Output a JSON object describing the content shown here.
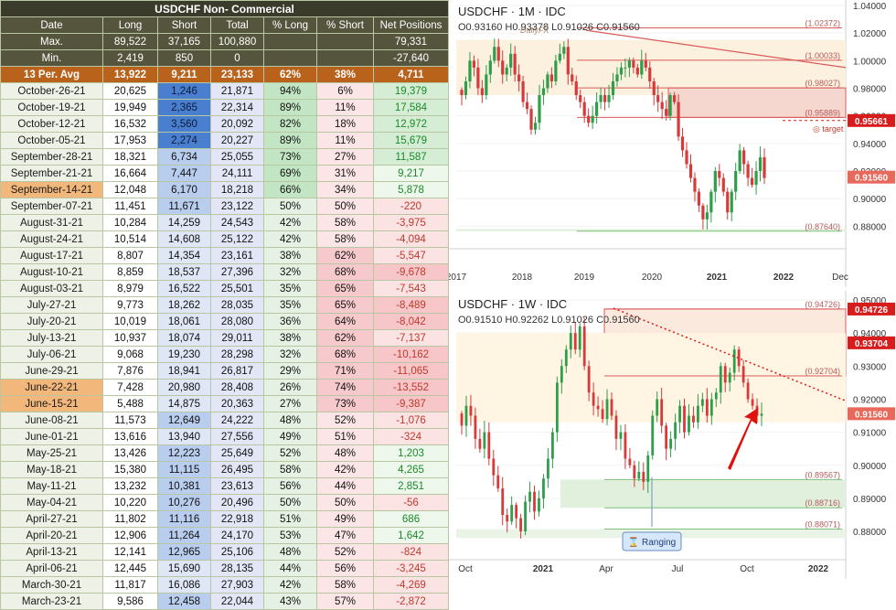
{
  "table": {
    "title": "USDCHF Non- Commercial",
    "headers": [
      "Date",
      "Long",
      "Short",
      "Total",
      "% Long",
      "% Short",
      "Net Positions"
    ],
    "max_row": {
      "label": "Max.",
      "long": "89,522",
      "short": "37,165",
      "total": "100,880",
      "net": "79,331"
    },
    "min_row": {
      "label": "Min.",
      "long": "2,419",
      "short": "850",
      "total": "0",
      "net": "-27,640"
    },
    "avg_row": {
      "label": "13 Per. Avg",
      "long": "13,922",
      "short": "9,211",
      "total": "23,133",
      "pct_long": "62%",
      "pct_short": "38%",
      "net": "4,711"
    },
    "rows": [
      {
        "date": "October-26-21",
        "long": "20,625",
        "short": "1,246",
        "total": "21,871",
        "pct_long": "94%",
        "pct_short": "6%",
        "net": "19,379"
      },
      {
        "date": "October-19-21",
        "long": "19,949",
        "short": "2,365",
        "total": "22,314",
        "pct_long": "89%",
        "pct_short": "11%",
        "net": "17,584"
      },
      {
        "date": "October-12-21",
        "long": "16,532",
        "short": "3,560",
        "total": "20,092",
        "pct_long": "82%",
        "pct_short": "18%",
        "net": "12,972"
      },
      {
        "date": "October-05-21",
        "long": "17,953",
        "short": "2,274",
        "total": "20,227",
        "pct_long": "89%",
        "pct_short": "11%",
        "net": "15,679"
      },
      {
        "date": "September-28-21",
        "long": "18,321",
        "short": "6,734",
        "total": "25,055",
        "pct_long": "73%",
        "pct_short": "27%",
        "net": "11,587"
      },
      {
        "date": "September-21-21",
        "long": "16,664",
        "short": "7,447",
        "total": "24,111",
        "pct_long": "69%",
        "pct_short": "31%",
        "net": "9,217"
      },
      {
        "date": "September-14-21",
        "long": "12,048",
        "short": "6,170",
        "total": "18,218",
        "pct_long": "66%",
        "pct_short": "34%",
        "net": "5,878"
      },
      {
        "date": "September-07-21",
        "long": "11,451",
        "short": "11,671",
        "total": "23,122",
        "pct_long": "50%",
        "pct_short": "50%",
        "net": "-220"
      },
      {
        "date": "August-31-21",
        "long": "10,284",
        "short": "14,259",
        "total": "24,543",
        "pct_long": "42%",
        "pct_short": "58%",
        "net": "-3,975"
      },
      {
        "date": "August-24-21",
        "long": "10,514",
        "short": "14,608",
        "total": "25,122",
        "pct_long": "42%",
        "pct_short": "58%",
        "net": "-4,094"
      },
      {
        "date": "August-17-21",
        "long": "8,807",
        "short": "14,354",
        "total": "23,161",
        "pct_long": "38%",
        "pct_short": "62%",
        "net": "-5,547"
      },
      {
        "date": "August-10-21",
        "long": "8,859",
        "short": "18,537",
        "total": "27,396",
        "pct_long": "32%",
        "pct_short": "68%",
        "net": "-9,678"
      },
      {
        "date": "August-03-21",
        "long": "8,979",
        "short": "16,522",
        "total": "25,501",
        "pct_long": "35%",
        "pct_short": "65%",
        "net": "-7,543"
      },
      {
        "date": "July-27-21",
        "long": "9,773",
        "short": "18,262",
        "total": "28,035",
        "pct_long": "35%",
        "pct_short": "65%",
        "net": "-8,489"
      },
      {
        "date": "July-20-21",
        "long": "10,019",
        "short": "18,061",
        "total": "28,080",
        "pct_long": "36%",
        "pct_short": "64%",
        "net": "-8,042"
      },
      {
        "date": "July-13-21",
        "long": "10,937",
        "short": "18,074",
        "total": "29,011",
        "pct_long": "38%",
        "pct_short": "62%",
        "net": "-7,137"
      },
      {
        "date": "July-06-21",
        "long": "9,068",
        "short": "19,230",
        "total": "28,298",
        "pct_long": "32%",
        "pct_short": "68%",
        "net": "-10,162"
      },
      {
        "date": "June-29-21",
        "long": "7,876",
        "short": "18,941",
        "total": "26,817",
        "pct_long": "29%",
        "pct_short": "71%",
        "net": "-11,065"
      },
      {
        "date": "June-22-21",
        "long": "7,428",
        "short": "20,980",
        "total": "28,408",
        "pct_long": "26%",
        "pct_short": "74%",
        "net": "-13,552"
      },
      {
        "date": "June-15-21",
        "long": "5,488",
        "short": "14,875",
        "total": "20,363",
        "pct_long": "27%",
        "pct_short": "73%",
        "net": "-9,387"
      },
      {
        "date": "June-08-21",
        "long": "11,573",
        "short": "12,649",
        "total": "24,222",
        "pct_long": "48%",
        "pct_short": "52%",
        "net": "-1,076"
      },
      {
        "date": "June-01-21",
        "long": "13,616",
        "short": "13,940",
        "total": "27,556",
        "pct_long": "49%",
        "pct_short": "51%",
        "net": "-324"
      },
      {
        "date": "May-25-21",
        "long": "13,426",
        "short": "12,223",
        "total": "25,649",
        "pct_long": "52%",
        "pct_short": "48%",
        "net": "1,203"
      },
      {
        "date": "May-18-21",
        "long": "15,380",
        "short": "11,115",
        "total": "26,495",
        "pct_long": "58%",
        "pct_short": "42%",
        "net": "4,265"
      },
      {
        "date": "May-11-21",
        "long": "13,232",
        "short": "10,381",
        "total": "23,613",
        "pct_long": "56%",
        "pct_short": "44%",
        "net": "2,851"
      },
      {
        "date": "May-04-21",
        "long": "10,220",
        "short": "10,276",
        "total": "20,496",
        "pct_long": "50%",
        "pct_short": "50%",
        "net": "-56"
      },
      {
        "date": "April-27-21",
        "long": "11,802",
        "short": "11,116",
        "total": "22,918",
        "pct_long": "51%",
        "pct_short": "49%",
        "net": "686"
      },
      {
        "date": "April-20-21",
        "long": "12,906",
        "short": "11,264",
        "total": "24,170",
        "pct_long": "53%",
        "pct_short": "47%",
        "net": "1,642"
      },
      {
        "date": "April-13-21",
        "long": "12,141",
        "short": "12,965",
        "total": "25,106",
        "pct_long": "48%",
        "pct_short": "52%",
        "net": "-824"
      },
      {
        "date": "April-06-21",
        "long": "12,445",
        "short": "15,690",
        "total": "28,135",
        "pct_long": "44%",
        "pct_short": "56%",
        "net": "-3,245"
      },
      {
        "date": "March-30-21",
        "long": "11,817",
        "short": "16,086",
        "total": "27,903",
        "pct_long": "42%",
        "pct_short": "58%",
        "net": "-4,269"
      },
      {
        "date": "March-23-21",
        "long": "9,586",
        "short": "12,458",
        "total": "22,044",
        "pct_long": "43%",
        "pct_short": "57%",
        "net": "-2,872"
      }
    ],
    "highlighted_dates": [
      "September-14-21",
      "June-22-21",
      "June-15-21"
    ]
  },
  "colors": {
    "header_bg": "#55553e",
    "avg_bg": "#b8621b",
    "bull_candle": "#2e9e4a",
    "bear_candle": "#d63a3a",
    "net_positive": "#1a8a2a",
    "net_negative": "#c0392b"
  },
  "chart_data": [
    {
      "type": "candlestick",
      "title": "USDCHF · 1M · IDC",
      "ohlc_label": "O0.93160 H0.93378 L0.91026 C0.91560",
      "watermark": "DailyFX",
      "ylim": [
        0.865,
        1.04
      ],
      "y_ticks": [
        "1.04000",
        "1.02000",
        "1.00000",
        "0.98000",
        "0.96000",
        "0.94000",
        "0.92000",
        "0.90000",
        "0.88000"
      ],
      "x_ticks": [
        "2017",
        "2018",
        "2019",
        "2020",
        "2021",
        "2022",
        "Dec"
      ],
      "levels": [
        {
          "label": "(1.02372)",
          "value": 1.02372
        },
        {
          "label": "(1.00033)",
          "value": 1.00033
        },
        {
          "label": "(0.98027)",
          "value": 0.98027
        },
        {
          "label": "(0.95889)",
          "value": 0.95889
        },
        {
          "label": "(0.87640)",
          "value": 0.8764
        }
      ],
      "price_tags": [
        {
          "label": "0.95661",
          "value": 0.95661
        },
        {
          "label": "0.91560",
          "value": 0.9156
        }
      ],
      "target_label": "target"
    },
    {
      "type": "candlestick",
      "title": "USDCHF · 1W · IDC",
      "ohlc_label": "O0.91510 H0.92262 L0.91026 C0.91560",
      "ylim": [
        0.872,
        0.95
      ],
      "y_ticks": [
        "0.95000",
        "0.94000",
        "0.93000",
        "0.92000",
        "0.91000",
        "0.90000",
        "0.89000",
        "0.88000"
      ],
      "x_ticks": [
        "Oct",
        "2021",
        "Apr",
        "Jul",
        "Oct",
        "2022"
      ],
      "levels": [
        {
          "label": "(0.94726)",
          "value": 0.94726
        },
        {
          "label": "(0.92704)",
          "value": 0.92704
        },
        {
          "label": "(0.89567)",
          "value": 0.89567
        },
        {
          "label": "(0.88716)",
          "value": 0.88716
        },
        {
          "label": "(0.88071)",
          "value": 0.88071
        }
      ],
      "price_tags": [
        {
          "label": "0.94726",
          "value": 0.94726
        },
        {
          "label": "0.93704",
          "value": 0.93704
        },
        {
          "label": "0.91560",
          "value": 0.9156
        }
      ],
      "annotation": "Ranging"
    }
  ]
}
